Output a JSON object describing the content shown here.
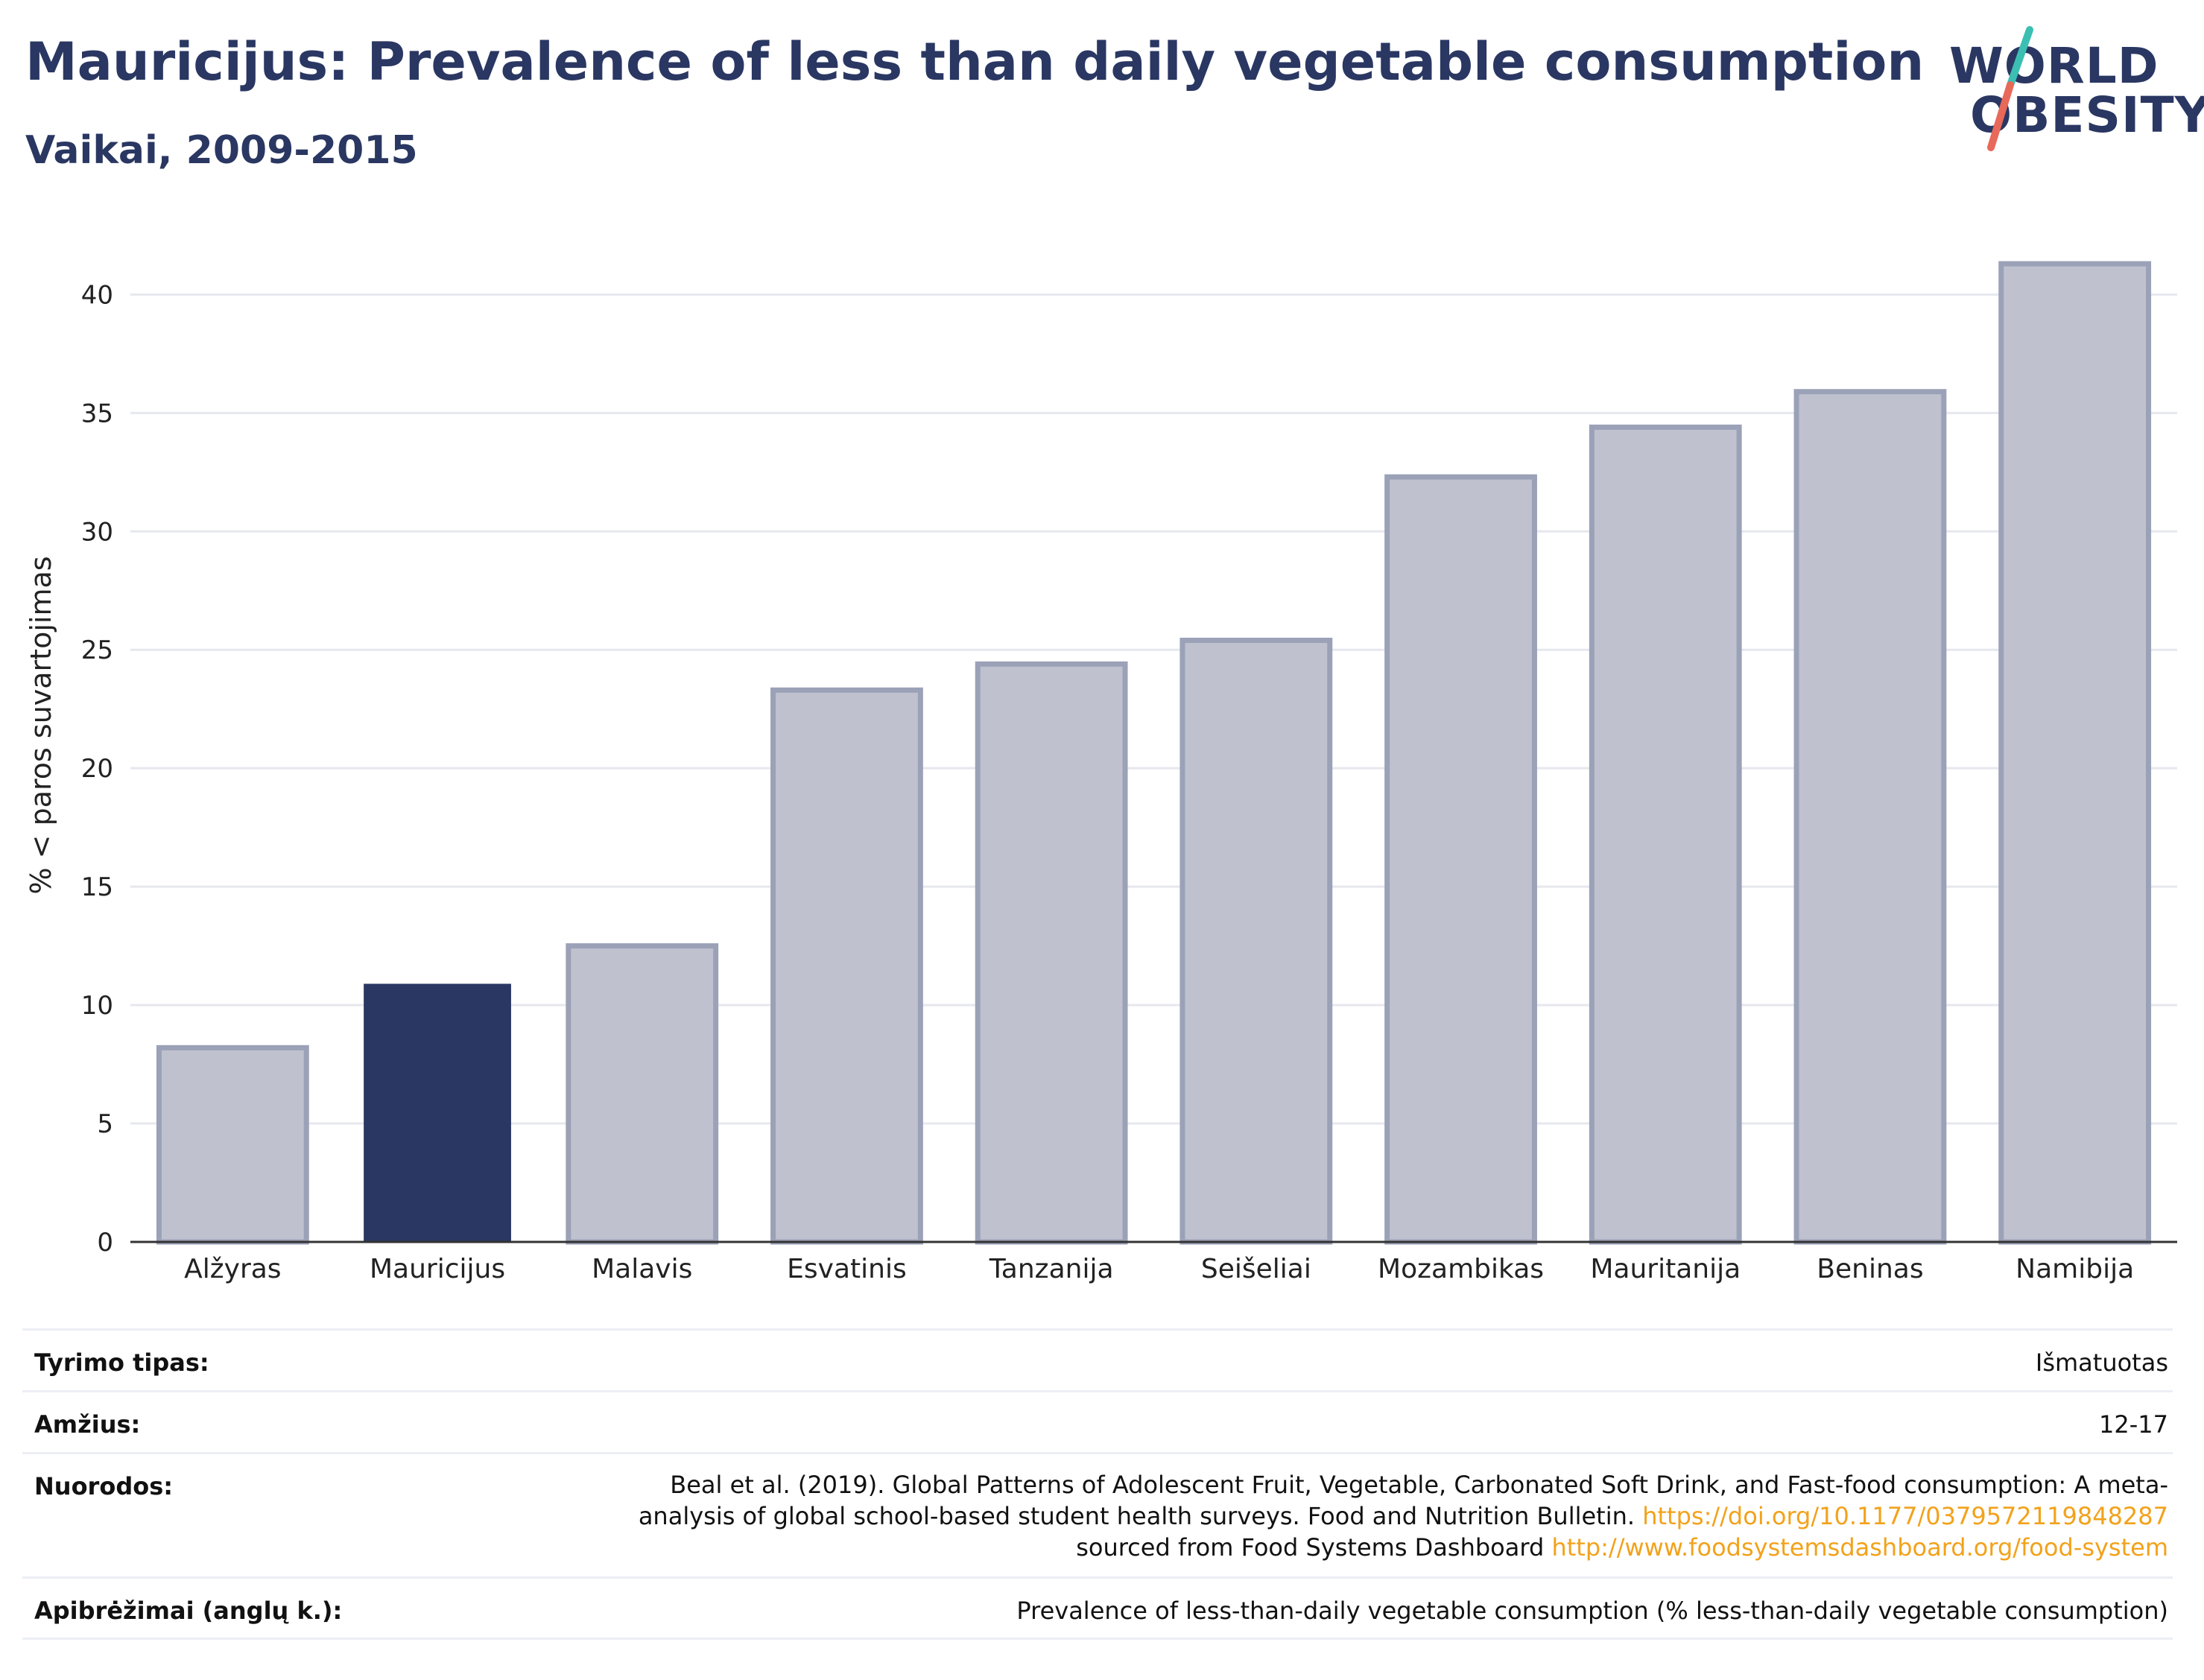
{
  "header": {
    "title": "Mauricijus: Prevalence of less than daily vegetable consumption",
    "subtitle": "Vaikai, 2009-2015"
  },
  "logo": {
    "line1": "WORLD",
    "line2": "OBESITY",
    "colors": {
      "text": "#2a3762",
      "slash_top": "#3bbfb3",
      "slash_bottom": "#e8685a"
    }
  },
  "colors": {
    "highlight_bar": "#2a3762",
    "other_bar_fill": "#bfc2ce",
    "other_bar_stroke": "#9ba1b7",
    "gridline": "#e6e8ee",
    "axis": "#333333",
    "link": "#f2a21b"
  },
  "chart_data": {
    "type": "bar",
    "categories": [
      "Alžyras",
      "Mauricijus",
      "Malavis",
      "Esvatinis",
      "Tanzanija",
      "Seišeliai",
      "Mozambikas",
      "Mauritanija",
      "Beninas",
      "Namibija"
    ],
    "values": [
      8.2,
      10.9,
      12.5,
      23.3,
      24.4,
      25.4,
      32.3,
      34.4,
      35.9,
      41.3
    ],
    "highlight": "Mauricijus",
    "title": "Mauricijus: Prevalence of less than daily vegetable consumption",
    "subtitle": "Vaikai, 2009-2015",
    "xlabel": "",
    "ylabel": "% < paros suvartojimas",
    "ylim": [
      0,
      43
    ],
    "yticks": [
      0,
      5,
      10,
      15,
      20,
      25,
      30,
      35,
      40
    ],
    "grid": true,
    "legend": "none"
  },
  "meta": {
    "rows": [
      {
        "label": "Tyrimo tipas:",
        "value": "Išmatuotas"
      },
      {
        "label": "Amžius:",
        "value": "12-17"
      },
      {
        "label": "Nuorodos:",
        "value_parts": [
          {
            "text": "Beal et al. (2019). Global Patterns of Adolescent Fruit, Vegetable, Carbonated Soft Drink, and Fast-food consumption: A meta-analysis of global school-based student health surveys. Food and Nutrition Bulletin. ",
            "link": false
          },
          {
            "text": "https://doi.org/10.1177/0379572119848287",
            "link": true
          },
          {
            "text": " sourced from Food Systems Dashboard ",
            "link": false
          },
          {
            "text": "http://www.foodsystemsdashboard.org/food-system",
            "link": true
          }
        ]
      },
      {
        "label": "Apibrėžimai (anglų k.):",
        "value": "Prevalence of less-than-daily vegetable consumption (% less-than-daily vegetable consumption)"
      }
    ]
  }
}
